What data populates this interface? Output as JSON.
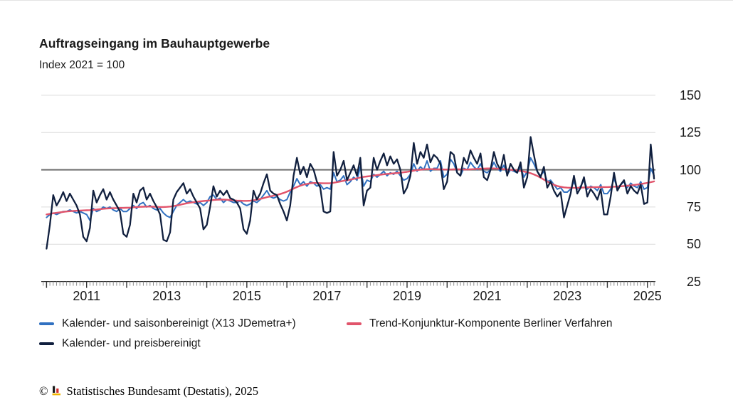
{
  "header": {
    "title": "Auftragseingang im Bauhauptgewerbe",
    "subtitle": "Index 2021 = 100"
  },
  "chart_data": {
    "type": "line",
    "title": "Auftragseingang im Bauhauptgewerbe",
    "subtitle": "Index 2021 = 100",
    "x_start": "2010-01",
    "x_end": "2025-03",
    "x_frequency": "monthly",
    "x_tick_labels": [
      "2011",
      "2013",
      "2015",
      "2017",
      "2019",
      "2021",
      "2023",
      "2025"
    ],
    "y_tick_labels": [
      "150",
      "125",
      "100",
      "75",
      "50",
      "25"
    ],
    "y_ticks": [
      150,
      125,
      100,
      75,
      50,
      25
    ],
    "ylim": [
      25,
      155
    ],
    "reference_line": 100,
    "grid": "horizontal",
    "legend_position": "bottom",
    "colors": {
      "seasonally_adjusted": "#3171c1",
      "trend": "#e1546b",
      "price_adjusted": "#101f3e",
      "reference_line": "#6e6e6e",
      "gridline": "#dcdcdc",
      "axis": "#262626"
    },
    "series": [
      {
        "name": "Kalender- und saisonbereinigt (X13 JDemetra+)",
        "color": "#3171c1",
        "values": [
          68,
          70,
          71,
          70,
          71,
          72,
          72,
          73,
          72,
          71,
          72,
          71,
          70,
          66,
          74,
          72,
          73,
          75,
          74,
          75,
          73,
          72,
          74,
          72,
          72,
          74,
          76,
          74,
          77,
          78,
          75,
          76,
          74,
          73,
          74,
          71,
          69,
          68,
          72,
          76,
          78,
          80,
          78,
          79,
          78,
          77,
          78,
          76,
          78,
          82,
          83,
          80,
          81,
          78,
          80,
          79,
          78,
          78,
          79,
          77,
          76,
          77,
          79,
          78,
          80,
          83,
          86,
          82,
          81,
          82,
          80,
          79,
          80,
          85,
          89,
          94,
          90,
          92,
          89,
          92,
          91,
          89,
          90,
          87,
          88,
          87,
          98,
          92,
          93,
          96,
          90,
          92,
          95,
          93,
          102,
          89,
          93,
          92,
          97,
          95,
          97,
          99,
          96,
          98,
          97,
          99,
          96,
          93,
          94,
          97,
          104,
          99,
          102,
          100,
          106,
          99,
          101,
          101,
          106,
          95,
          97,
          107,
          104,
          98,
          96,
          101,
          100,
          105,
          102,
          100,
          104,
          99,
          98,
          100,
          105,
          101,
          99,
          103,
          97,
          100,
          99,
          98,
          102,
          95,
          99,
          108,
          104,
          99,
          96,
          99,
          92,
          93,
          90,
          87,
          88,
          85,
          85,
          87,
          92,
          87,
          89,
          93,
          87,
          89,
          88,
          86,
          90,
          84,
          84,
          87,
          94,
          88,
          90,
          92,
          88,
          91,
          89,
          88,
          92,
          87,
          88,
          101,
          96
        ]
      },
      {
        "name": "Trend-Konjunktur-Komponente Berliner Verfahren",
        "color": "#e1546b",
        "values": [
          70,
          70.4,
          70.8,
          71.1,
          71.4,
          71.7,
          72,
          72.2,
          72.4,
          72.5,
          72.6,
          72.7,
          72.8,
          72.9,
          73.1,
          73.3,
          73.6,
          73.8,
          74,
          74.1,
          74.2,
          74.3,
          74.4,
          74.4,
          74.5,
          74.6,
          74.8,
          75,
          75.1,
          75.2,
          75.3,
          75.3,
          75.2,
          75.1,
          75,
          75,
          75.1,
          75.3,
          75.6,
          76,
          76.5,
          77,
          77.5,
          77.9,
          78.2,
          78.5,
          78.8,
          79,
          79.2,
          79.4,
          79.7,
          79.9,
          80,
          80,
          79.9,
          79.7,
          79.5,
          79.3,
          79.2,
          79.1,
          79.1,
          79.2,
          79.5,
          79.9,
          80.4,
          81,
          81.6,
          82.1,
          82.6,
          83.1,
          83.7,
          84.4,
          85.3,
          86.3,
          87.4,
          88.4,
          89.3,
          90,
          90.5,
          90.9,
          91.1,
          91.1,
          91,
          90.9,
          90.9,
          91,
          91.3,
          91.7,
          92.1,
          92.6,
          93,
          93.4,
          93.9,
          94.3,
          94.8,
          95.2,
          95.5,
          95.8,
          96.1,
          96.4,
          96.7,
          97,
          97.2,
          97.4,
          97.6,
          97.8,
          98,
          98.3,
          98.6,
          99,
          99.4,
          99.8,
          100.1,
          100.3,
          100.4,
          100.4,
          100.4,
          100.3,
          100.3,
          100.2,
          100.2,
          100.2,
          100.3,
          100.3,
          100.3,
          100.2,
          100.2,
          100.3,
          100.4,
          100.6,
          100.7,
          100.8,
          100.9,
          100.9,
          100.9,
          100.8,
          100.6,
          100.4,
          100.2,
          100,
          99.8,
          99.5,
          99.2,
          98.8,
          98.3,
          97.7,
          96.9,
          95.9,
          94.7,
          93.4,
          92.1,
          90.9,
          89.9,
          89.1,
          88.6,
          88.2,
          88,
          87.9,
          87.9,
          87.9,
          88,
          88.1,
          88.2,
          88.3,
          88.3,
          88.4,
          88.4,
          88.4,
          88.4,
          88.5,
          88.6,
          88.7,
          88.9,
          89.1,
          89.3,
          89.5,
          89.8,
          90.1,
          90.4,
          90.8,
          91.2,
          91.7,
          92.2
        ]
      },
      {
        "name": "Kalender- und preisbereinigt",
        "color": "#101f3e",
        "values": [
          47,
          63,
          83,
          76,
          80,
          85,
          79,
          84,
          80,
          76,
          70,
          55,
          52,
          61,
          86,
          78,
          83,
          87,
          80,
          85,
          80,
          76,
          72,
          57,
          55,
          63,
          84,
          78,
          86,
          88,
          80,
          84,
          79,
          75,
          70,
          53,
          52,
          58,
          80,
          85,
          88,
          91,
          84,
          87,
          82,
          78,
          74,
          60,
          63,
          75,
          89,
          82,
          86,
          83,
          86,
          81,
          80,
          78,
          74,
          60,
          57,
          66,
          86,
          80,
          84,
          91,
          97,
          86,
          84,
          83,
          77,
          72,
          66,
          76,
          96,
          108,
          97,
          102,
          95,
          104,
          100,
          92,
          88,
          72,
          71,
          72,
          112,
          96,
          100,
          106,
          93,
          98,
          103,
          96,
          108,
          76,
          86,
          88,
          108,
          100,
          106,
          111,
          103,
          109,
          104,
          107,
          100,
          84,
          88,
          96,
          118,
          104,
          112,
          108,
          117,
          105,
          110,
          108,
          104,
          87,
          92,
          112,
          110,
          98,
          96,
          108,
          104,
          113,
          108,
          104,
          111,
          95,
          93,
          100,
          112,
          104,
          100,
          110,
          96,
          104,
          100,
          98,
          105,
          88,
          95,
          122,
          110,
          99,
          95,
          102,
          88,
          92,
          86,
          82,
          85,
          68,
          76,
          84,
          96,
          84,
          88,
          95,
          82,
          87,
          84,
          80,
          87,
          70,
          70,
          82,
          98,
          86,
          90,
          93,
          84,
          89,
          86,
          84,
          90,
          77,
          78,
          117,
          94
        ]
      }
    ]
  },
  "legend": {
    "items": [
      {
        "label": "Kalender- und saisonbereinigt (X13 JDemetra+)",
        "color": "#3171c1"
      },
      {
        "label": "Trend-Konjunktur-Komponente Berliner Verfahren",
        "color": "#e1546b"
      },
      {
        "label": "Kalender- und preisbereinigt",
        "color": "#101f3e"
      }
    ]
  },
  "footer": {
    "copyright": "©",
    "text": "Statistisches Bundesamt (Destatis), 2025",
    "logo_colors": {
      "black": "#1a1a1a",
      "red": "#d22e2e",
      "gold": "#f0b400"
    }
  }
}
